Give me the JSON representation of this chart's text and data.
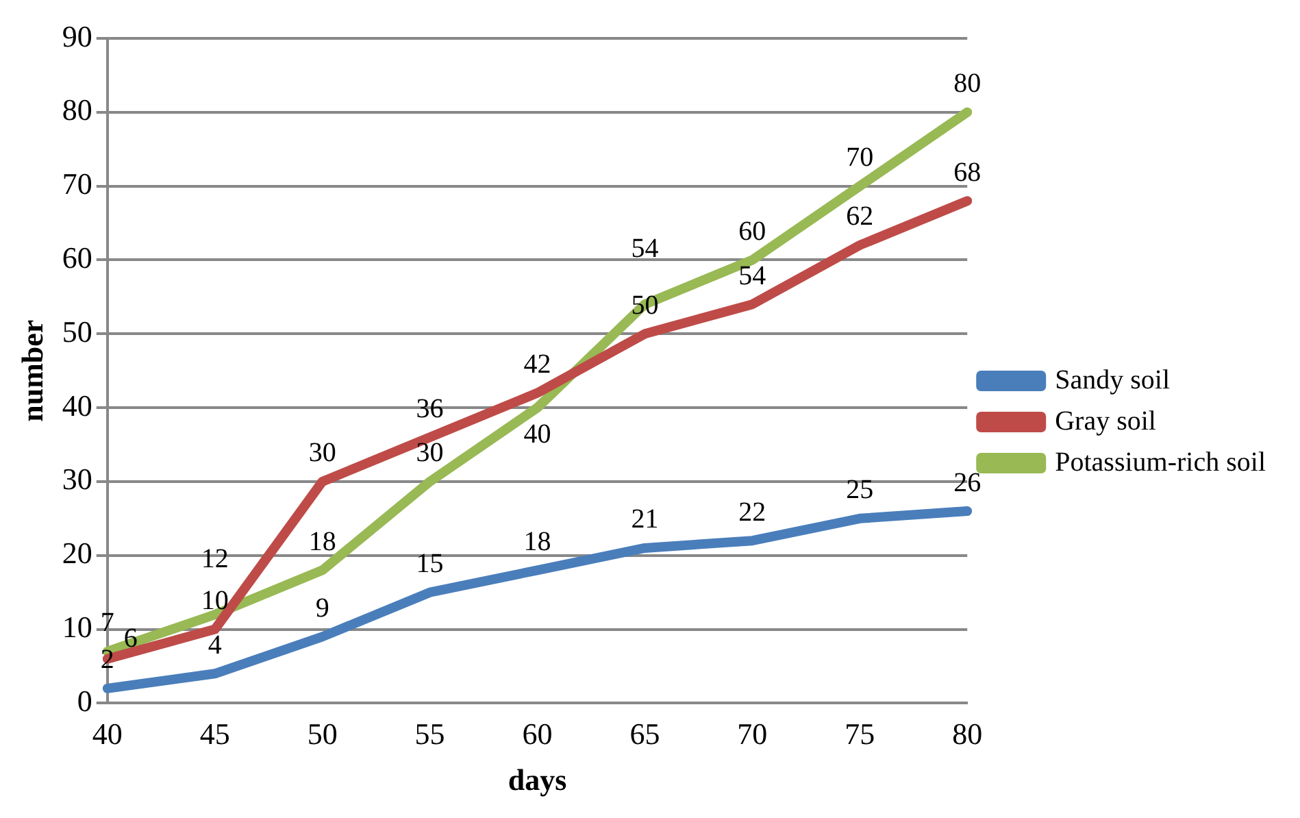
{
  "chart_data": {
    "type": "line",
    "xlabel": "days",
    "ylabel": "number",
    "categories": [
      "40",
      "45",
      "50",
      "55",
      "60",
      "65",
      "70",
      "75",
      "80"
    ],
    "series": [
      {
        "name": "Sandy soil",
        "color": "#4a7ebb",
        "values": [
          2,
          4,
          9,
          15,
          18,
          21,
          22,
          25,
          26
        ]
      },
      {
        "name": "Gray soil",
        "color": "#be4b48",
        "values": [
          6,
          10,
          30,
          36,
          42,
          50,
          54,
          62,
          68
        ]
      },
      {
        "name": "Potassium-rich soil",
        "color": "#98b954",
        "values": [
          7,
          12,
          18,
          30,
          40,
          54,
          60,
          70,
          80
        ]
      }
    ],
    "ylim": [
      0,
      90
    ],
    "yticks": [
      0,
      10,
      20,
      30,
      40,
      50,
      60,
      70,
      80,
      90
    ],
    "grid": "y",
    "legend": "right",
    "data_labels": true,
    "marker": "none",
    "line_style": "solid"
  }
}
